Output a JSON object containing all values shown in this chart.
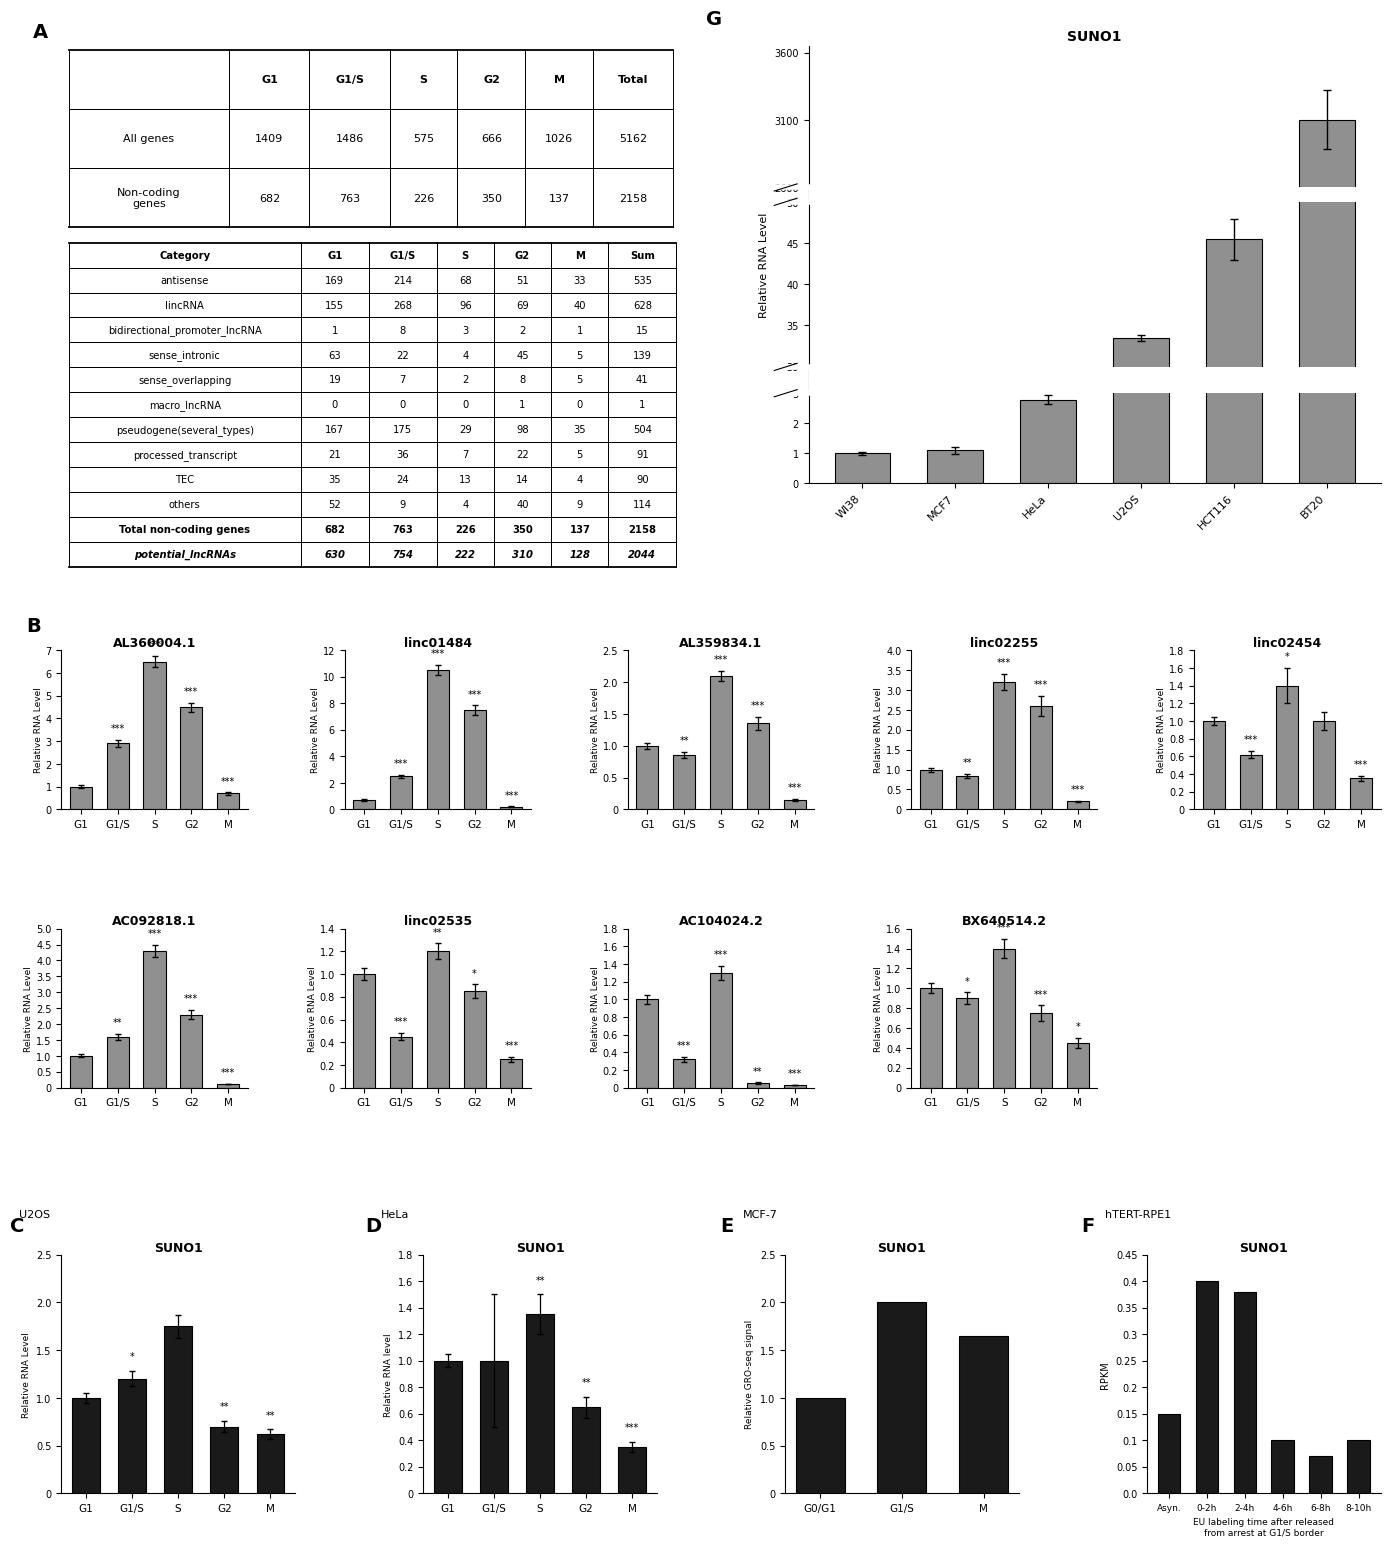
{
  "panel_A_table1_headers": [
    "",
    "G1",
    "G1/S",
    "S",
    "G2",
    "M",
    "Total"
  ],
  "panel_A_table1_rows": [
    [
      "All genes",
      "1409",
      "1486",
      "575",
      "666",
      "1026",
      "5162"
    ],
    [
      "Non-coding\ngenes",
      "682",
      "763",
      "226",
      "350",
      "137",
      "2158"
    ]
  ],
  "panel_A_table2_headers": [
    "Category",
    "G1",
    "G1/S",
    "S",
    "G2",
    "M",
    "Sum"
  ],
  "panel_A_table2_rows": [
    [
      "antisense",
      "169",
      "214",
      "68",
      "51",
      "33",
      "535"
    ],
    [
      "lincRNA",
      "155",
      "268",
      "96",
      "69",
      "40",
      "628"
    ],
    [
      "bidirectional_promoter_lncRNA",
      "1",
      "8",
      "3",
      "2",
      "1",
      "15"
    ],
    [
      "sense_intronic",
      "63",
      "22",
      "4",
      "45",
      "5",
      "139"
    ],
    [
      "sense_overlapping",
      "19",
      "7",
      "2",
      "8",
      "5",
      "41"
    ],
    [
      "macro_lncRNA",
      "0",
      "0",
      "0",
      "1",
      "0",
      "1"
    ],
    [
      "pseudogene(several_types)",
      "167",
      "175",
      "29",
      "98",
      "35",
      "504"
    ],
    [
      "processed_transcript",
      "21",
      "36",
      "7",
      "22",
      "5",
      "91"
    ],
    [
      "TEC",
      "35",
      "24",
      "13",
      "14",
      "4",
      "90"
    ],
    [
      "others",
      "52",
      "9",
      "4",
      "40",
      "9",
      "114"
    ],
    [
      "Total non-coding genes",
      "682",
      "763",
      "226",
      "350",
      "137",
      "2158"
    ],
    [
      "potential_lncRNAs",
      "630",
      "754",
      "222",
      "310",
      "128",
      "2044"
    ]
  ],
  "panel_G_title": "SUNO1",
  "panel_G_categories": [
    "WI38",
    "MCF7",
    "HeLa",
    "U2OS",
    "HCT116",
    "BT20"
  ],
  "panel_G_values": [
    1.0,
    1.1,
    2.8,
    33.5,
    45.5,
    3100.0
  ],
  "panel_G_errors": [
    0.05,
    0.12,
    0.15,
    0.4,
    2.5,
    220.0
  ],
  "panel_G_ylabel": "Relative RNA Level",
  "panel_B_charts": [
    {
      "title": "AL360004.1",
      "categories": [
        "G1",
        "G1/S",
        "S",
        "G2",
        "M"
      ],
      "values": [
        1.0,
        2.9,
        6.5,
        4.5,
        0.7
      ],
      "errors": [
        0.05,
        0.15,
        0.25,
        0.2,
        0.05
      ],
      "ylim": [
        0,
        7
      ],
      "yticks": [
        0,
        1,
        2,
        3,
        4,
        5,
        6,
        7
      ],
      "stars": [
        "",
        "***",
        "***",
        "***",
        "***"
      ],
      "ylabel": "Relative RNA Level"
    },
    {
      "title": "linc01484",
      "categories": [
        "G1",
        "G1/S",
        "S",
        "G2",
        "M"
      ],
      "values": [
        0.7,
        2.5,
        10.5,
        7.5,
        0.2
      ],
      "errors": [
        0.05,
        0.1,
        0.4,
        0.35,
        0.02
      ],
      "ylim": [
        0,
        12
      ],
      "yticks": [
        0,
        2,
        4,
        6,
        8,
        10,
        12
      ],
      "stars": [
        "",
        "***",
        "***",
        "***",
        "***"
      ],
      "ylabel": "Relative RNA Level"
    },
    {
      "title": "AL359834.1",
      "categories": [
        "G1",
        "G1/S",
        "S",
        "G2",
        "M"
      ],
      "values": [
        1.0,
        0.85,
        2.1,
        1.35,
        0.15
      ],
      "errors": [
        0.05,
        0.05,
        0.08,
        0.1,
        0.02
      ],
      "ylim": [
        0,
        2.5
      ],
      "yticks": [
        0,
        0.5,
        1.0,
        1.5,
        2.0,
        2.5
      ],
      "stars": [
        "",
        "**",
        "***",
        "***",
        "***"
      ],
      "ylabel": "Relative RNA Level"
    },
    {
      "title": "linc02255",
      "categories": [
        "G1",
        "G1/S",
        "S",
        "G2",
        "M"
      ],
      "values": [
        1.0,
        0.85,
        3.2,
        2.6,
        0.2
      ],
      "errors": [
        0.05,
        0.05,
        0.2,
        0.25,
        0.02
      ],
      "ylim": [
        0,
        4.0
      ],
      "yticks": [
        0,
        0.5,
        1.0,
        1.5,
        2.0,
        2.5,
        3.0,
        3.5,
        4.0
      ],
      "stars": [
        "",
        "**",
        "***",
        "***",
        "***"
      ],
      "ylabel": "Relative RNA Level"
    },
    {
      "title": "linc02454",
      "categories": [
        "G1",
        "G1/S",
        "S",
        "G2",
        "M"
      ],
      "values": [
        1.0,
        0.62,
        1.4,
        1.0,
        0.35
      ],
      "errors": [
        0.05,
        0.04,
        0.2,
        0.1,
        0.03
      ],
      "ylim": [
        0,
        1.8
      ],
      "yticks": [
        0,
        0.2,
        0.4,
        0.6,
        0.8,
        1.0,
        1.2,
        1.4,
        1.6,
        1.8
      ],
      "stars": [
        "",
        "***",
        "*",
        "",
        "***"
      ],
      "ylabel": "Relative RNA Level"
    },
    {
      "title": "AC092818.1",
      "categories": [
        "G1",
        "G1/S",
        "S",
        "G2",
        "M"
      ],
      "values": [
        1.0,
        1.6,
        4.3,
        2.3,
        0.12
      ],
      "errors": [
        0.05,
        0.1,
        0.2,
        0.15,
        0.01
      ],
      "ylim": [
        0,
        5.0
      ],
      "yticks": [
        0,
        0.5,
        1.0,
        1.5,
        2.0,
        2.5,
        3.0,
        3.5,
        4.0,
        4.5,
        5.0
      ],
      "stars": [
        "",
        "**",
        "***",
        "***",
        "***"
      ],
      "ylabel": "Relative RNA Level"
    },
    {
      "title": "linc02535",
      "categories": [
        "G1",
        "G1/S",
        "S",
        "G2",
        "M"
      ],
      "values": [
        1.0,
        0.45,
        1.2,
        0.85,
        0.25
      ],
      "errors": [
        0.05,
        0.03,
        0.07,
        0.06,
        0.02
      ],
      "ylim": [
        0,
        1.4
      ],
      "yticks": [
        0,
        0.2,
        0.4,
        0.6,
        0.8,
        1.0,
        1.2,
        1.4
      ],
      "stars": [
        "",
        "***",
        "**",
        "*",
        "***"
      ],
      "ylabel": "Relative RNA Level"
    },
    {
      "title": "AC104024.2",
      "categories": [
        "G1",
        "G1/S",
        "S",
        "G2",
        "M"
      ],
      "values": [
        1.0,
        0.32,
        1.3,
        0.05,
        0.03
      ],
      "errors": [
        0.05,
        0.03,
        0.08,
        0.01,
        0.005
      ],
      "ylim": [
        0,
        1.8
      ],
      "yticks": [
        0,
        0.2,
        0.4,
        0.6,
        0.8,
        1.0,
        1.2,
        1.4,
        1.6,
        1.8
      ],
      "stars": [
        "",
        "***",
        "***",
        "**",
        "***"
      ],
      "ylabel": "Relative RNA Level"
    },
    {
      "title": "BX640514.2",
      "categories": [
        "G1",
        "G1/S",
        "S",
        "G2",
        "M"
      ],
      "values": [
        1.0,
        0.9,
        1.4,
        0.75,
        0.45
      ],
      "errors": [
        0.05,
        0.06,
        0.1,
        0.08,
        0.05
      ],
      "ylim": [
        0,
        1.6
      ],
      "yticks": [
        0,
        0.2,
        0.4,
        0.6,
        0.8,
        1.0,
        1.2,
        1.4,
        1.6
      ],
      "stars": [
        "",
        "*",
        "***",
        "***",
        "*"
      ],
      "ylabel": "Relative RNA Level"
    }
  ],
  "panel_C": {
    "title": "SUNO1",
    "label": "U2OS",
    "categories": [
      "G1",
      "G1/S",
      "S",
      "G2",
      "M"
    ],
    "values": [
      1.0,
      1.2,
      1.75,
      0.7,
      0.62
    ],
    "errors": [
      0.05,
      0.08,
      0.12,
      0.06,
      0.05
    ],
    "ylim": [
      0,
      2.5
    ],
    "yticks": [
      0,
      0.5,
      1.0,
      1.5,
      2.0,
      2.5
    ],
    "stars": [
      "",
      "*",
      "",
      "**",
      "**"
    ],
    "ylabel": "Relative RNA Level"
  },
  "panel_D": {
    "title": "SUNO1",
    "label": "HeLa",
    "categories": [
      "G1",
      "G1/S",
      "S",
      "G2",
      "M"
    ],
    "values": [
      1.0,
      1.0,
      1.35,
      0.65,
      0.35
    ],
    "errors": [
      0.05,
      0.5,
      0.15,
      0.08,
      0.04
    ],
    "ylim": [
      0,
      1.8
    ],
    "yticks": [
      0,
      0.2,
      0.4,
      0.6,
      0.8,
      1.0,
      1.2,
      1.4,
      1.6,
      1.8
    ],
    "stars": [
      "",
      "",
      "**",
      "**",
      "***"
    ],
    "ylabel": "Relative RNA level"
  },
  "panel_E": {
    "title": "SUNO1",
    "label": "MCF-7",
    "categories": [
      "G0/G1",
      "G1/S",
      "M"
    ],
    "values": [
      1.0,
      2.0,
      1.65
    ],
    "errors": [
      0.0,
      0.0,
      0.0
    ],
    "ylim": [
      0,
      2.5
    ],
    "yticks": [
      0,
      0.5,
      1.0,
      1.5,
      2.0,
      2.5
    ],
    "stars": [
      "",
      "",
      ""
    ],
    "ylabel": "Relative GRO-seq signal"
  },
  "panel_F": {
    "title": "SUNO1",
    "label": "hTERT-RPE1",
    "categories": [
      "Asyn.",
      "0-2h",
      "2-4h",
      "4-6h",
      "6-8h",
      "8-10h"
    ],
    "values": [
      0.15,
      0.4,
      0.38,
      0.1,
      0.07,
      0.1
    ],
    "errors": [
      0.0,
      0.0,
      0.0,
      0.0,
      0.0,
      0.0
    ],
    "ylim": [
      0,
      0.45
    ],
    "yticks": [
      0.0,
      0.05,
      0.1,
      0.15,
      0.2,
      0.25,
      0.3,
      0.35,
      0.4,
      0.45
    ],
    "stars": [
      "",
      "",
      "",
      "",
      "",
      ""
    ],
    "ylabel": "RPKM",
    "xlabel": "EU labeling time after released\nfrom arrest at G1/S border"
  },
  "bar_color_gray": "#909090",
  "bar_color_black": "#1a1a1a",
  "fig_bg": "#ffffff"
}
